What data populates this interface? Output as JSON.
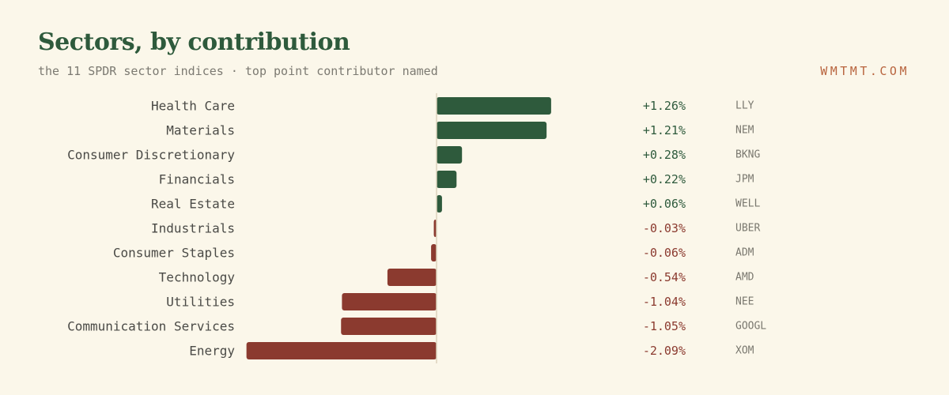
{
  "header": {
    "title": "Sectors, by contribution",
    "subtitle": "the 11 SPDR sector indices · top point contributor named",
    "brand": "WMTMT.COM"
  },
  "colors": {
    "positive": "#2e5a3c",
    "negative": "#8b3a2f",
    "background": "#fbf7ea"
  },
  "chart_data": {
    "type": "bar",
    "orientation": "horizontal",
    "categories": [
      "Health Care",
      "Materials",
      "Consumer Discretionary",
      "Financials",
      "Real Estate",
      "Industrials",
      "Consumer Staples",
      "Technology",
      "Utilities",
      "Communication Services",
      "Energy"
    ],
    "values": [
      1.26,
      1.21,
      0.28,
      0.22,
      0.06,
      -0.03,
      -0.06,
      -0.54,
      -1.04,
      -1.05,
      -2.09
    ],
    "value_labels": [
      "+1.26%",
      "+1.21%",
      "+0.28%",
      "+0.22%",
      "+0.06%",
      "-0.03%",
      "-0.06%",
      "-0.54%",
      "-1.04%",
      "-1.05%",
      "-2.09%"
    ],
    "tickers": [
      "LLY",
      "NEM",
      "BKNG",
      "JPM",
      "WELL",
      "UBER",
      "ADM",
      "AMD",
      "NEE",
      "GOOGL",
      "XOM"
    ],
    "unit": "%",
    "xlim": [
      -2.09,
      1.26
    ],
    "grid": false,
    "legend": "none"
  }
}
